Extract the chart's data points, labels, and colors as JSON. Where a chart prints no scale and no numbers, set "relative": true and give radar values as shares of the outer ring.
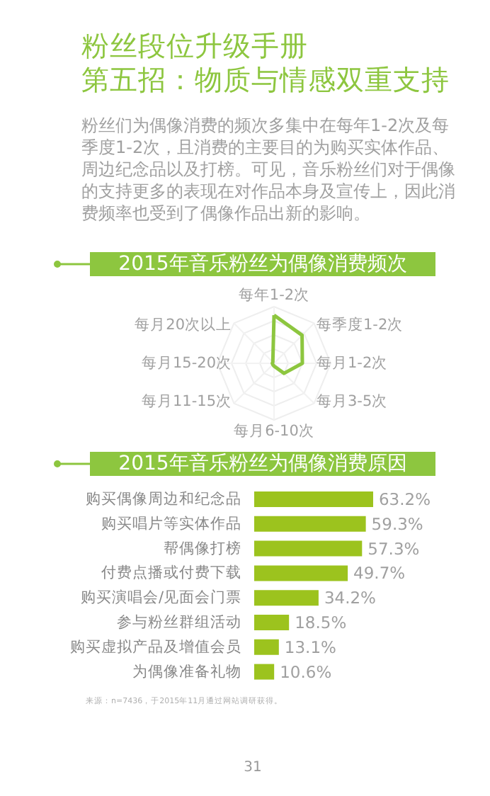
{
  "chart_data": [
    {
      "type": "other",
      "title": "粉丝段位升级手册",
      "subtitle": "第五招：物质与情感双重支持",
      "annotations": [
        "粉丝们为偶像消费的频次多集中在每年1-2次及每季度1-2次，且消费的主要目的为购买实体作品、周边纪念品以及打榜。可见，音乐粉丝们对于偶像的支持更多的表现在对作品本身及宣传上，因此消费频率也受到了偶像作品出新的影响。"
      ]
    },
    {
      "type": "radar",
      "title": "2015年音乐粉丝为偶像消费频次",
      "relative": true,
      "grid": true,
      "categories": [
        "每年1-2次",
        "每季度1-2次",
        "每月1-2次",
        "每月3-5次",
        "每月6-10次",
        "每月11-15次",
        "每月15-20次",
        "每月20次以上"
      ],
      "series": [
        {
          "color": "#8dc63f",
          "values": [
            0.85,
            0.7,
            0.5,
            0.25,
            0.05,
            0.03,
            0.03,
            0.03
          ]
        }
      ]
    },
    {
      "type": "bar",
      "orientation": "horizontal",
      "title": "2015年音乐粉丝为偶像消费原因",
      "categories": [
        "购买偶像周边和纪念品",
        "购买唱片等实体作品",
        "帮偶像打榜",
        "付费点播或付费下载",
        "购买演唱会/见面会门票",
        "参与粉丝群组活动",
        "购买虚拟产品及增值会员",
        "为偶像准备礼物"
      ],
      "values": [
        63.2,
        59.3,
        57.3,
        49.7,
        34.2,
        18.5,
        13.1,
        10.6
      ],
      "color": "#9cc31e",
      "value_labels": [
        "63.2%",
        "59.3%",
        "57.3%",
        "49.7%",
        "34.2%",
        "18.5%",
        "13.1%",
        "10.6%"
      ],
      "annotations": [
        "来源：n=7436，于2015年11月通过网站调研获得。",
        "31"
      ]
    }
  ]
}
